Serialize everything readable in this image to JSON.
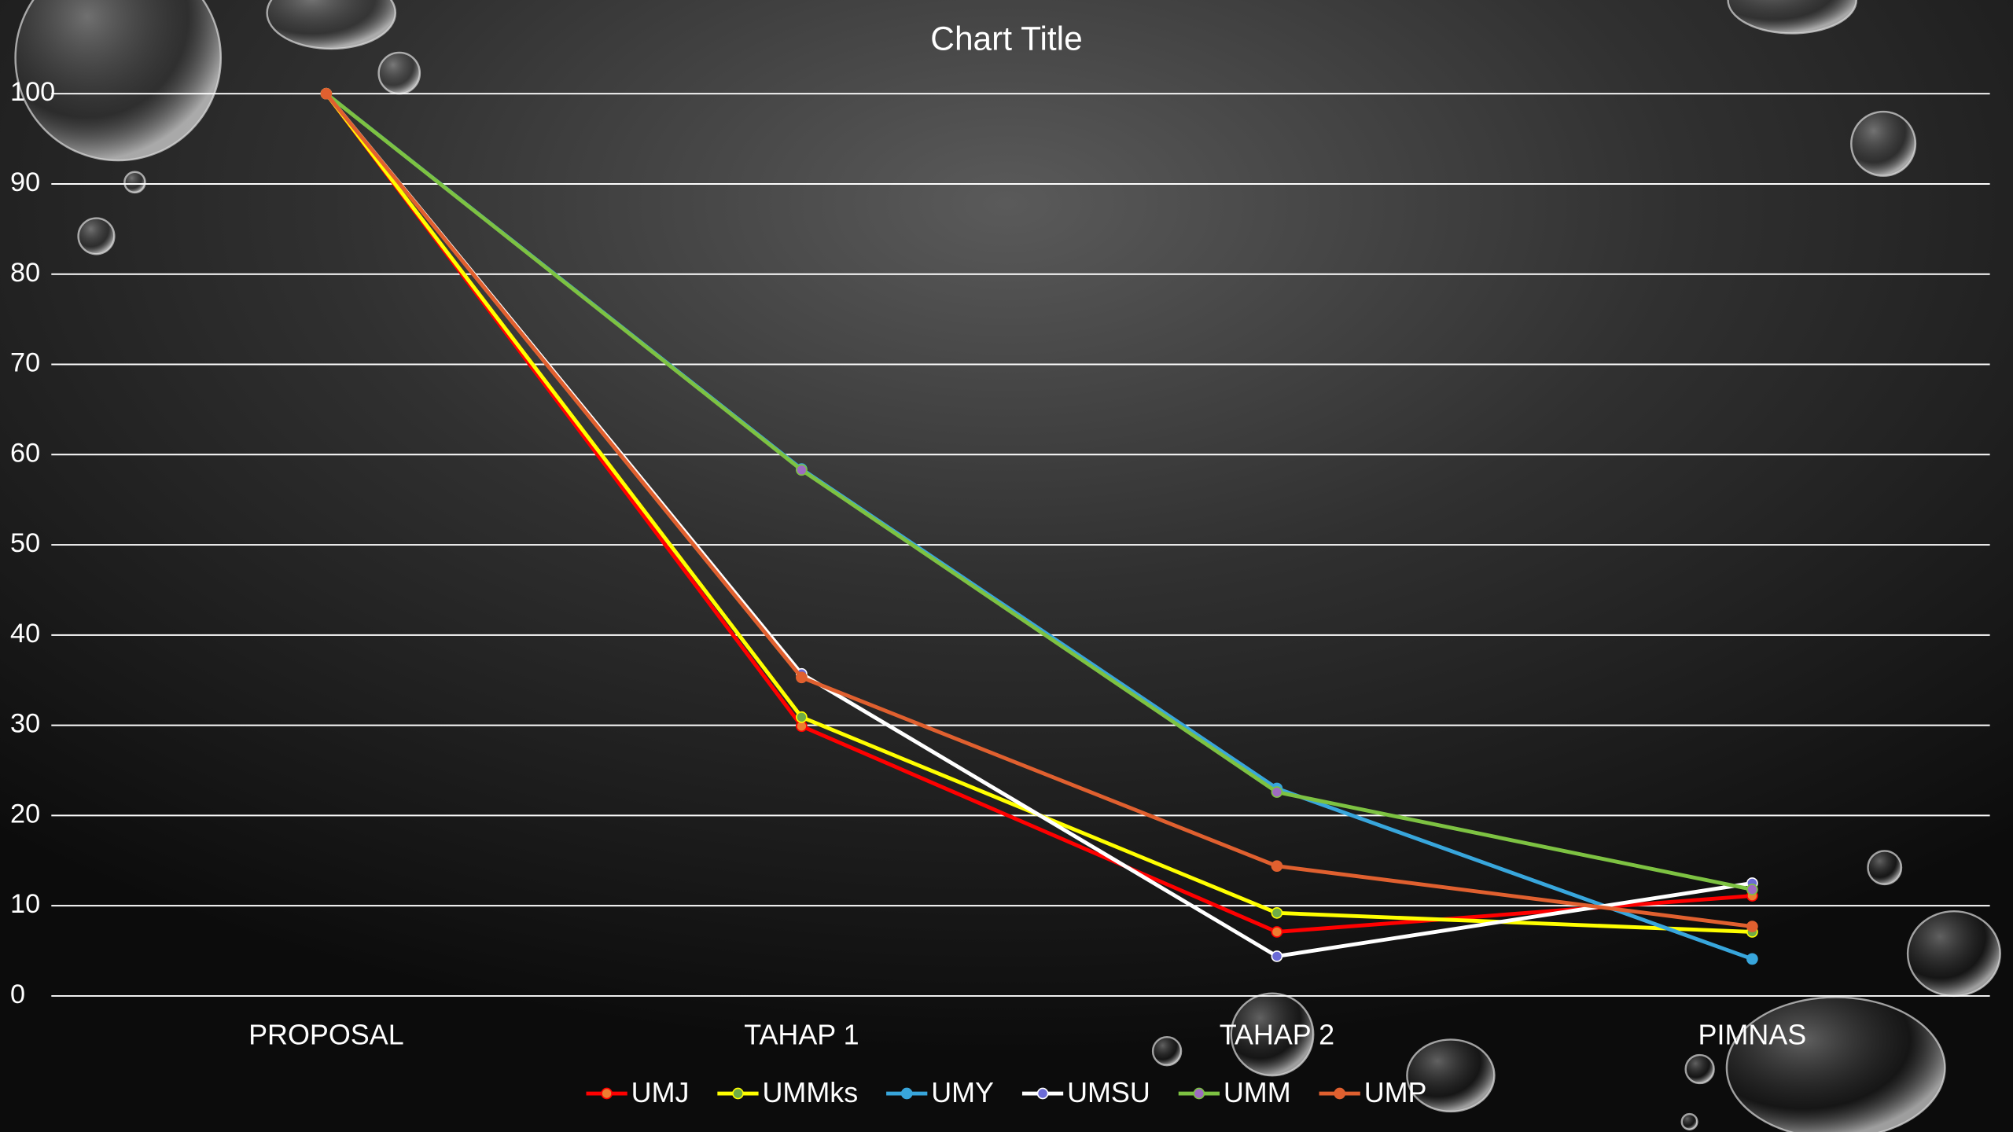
{
  "chart_data": {
    "type": "line",
    "title": "Chart Title",
    "categories": [
      "PROPOSAL",
      "TAHAP 1",
      "TAHAP 2",
      "PIMNAS"
    ],
    "ylim": [
      0,
      100
    ],
    "yticks": [
      0,
      10,
      20,
      30,
      40,
      50,
      60,
      70,
      80,
      90,
      100
    ],
    "grid": true,
    "legend": "bottom",
    "series": [
      {
        "name": "UMJ",
        "color": "#ff0000",
        "marker_color": "#ed7d31",
        "values": [
          100,
          29.9,
          7.1,
          11.1
        ]
      },
      {
        "name": "UMMks",
        "color": "#ffff00",
        "marker_color": "#70ad47",
        "values": [
          100,
          30.9,
          9.2,
          7.1
        ]
      },
      {
        "name": "UMY",
        "color": "#38a6dc",
        "marker_color": "#38a6dc",
        "values": [
          100,
          58.4,
          23.0,
          4.1
        ]
      },
      {
        "name": "UMSU",
        "color": "#ffffff",
        "marker_color": "#6b6bd6",
        "values": [
          100,
          35.7,
          4.4,
          12.5
        ]
      },
      {
        "name": "UMM",
        "color": "#7dc242",
        "marker_color": "#9e6bc1",
        "values": [
          100,
          58.3,
          22.6,
          11.8
        ]
      },
      {
        "name": "UMP",
        "color": "#e0602f",
        "marker_color": "#e0602f",
        "values": [
          100,
          35.3,
          14.4,
          7.7
        ]
      }
    ]
  }
}
